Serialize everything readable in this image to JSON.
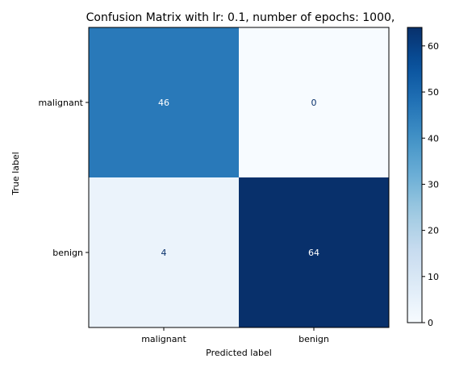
{
  "chart_data": {
    "type": "heatmap",
    "title": "Confusion Matrix with lr: 0.1, number of epochs: 1000,",
    "xlabel": "Predicted label",
    "ylabel": "True label",
    "x_categories": [
      "malignant",
      "benign"
    ],
    "y_categories": [
      "malignant",
      "benign"
    ],
    "matrix": [
      [
        46,
        0
      ],
      [
        4,
        64
      ]
    ],
    "colormap": "Blues",
    "colorbar": {
      "range": [
        0,
        64
      ],
      "ticks": [
        0,
        10,
        20,
        30,
        40,
        50,
        60
      ]
    },
    "grid": false
  }
}
